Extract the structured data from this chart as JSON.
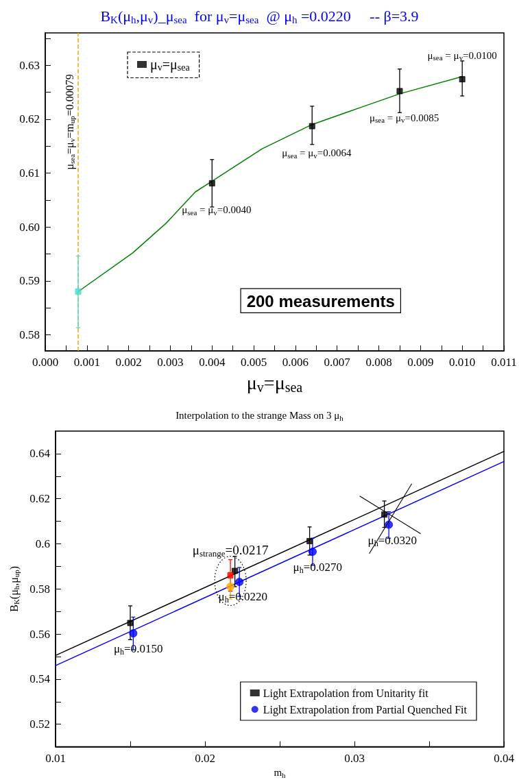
{
  "chart_data": [
    {
      "type": "scatter",
      "title": "B$_{K}$(μ$_{h}$,μ$_{v}$)_μ$_{sea}$  for μ$_{v}$=μ$_{sea}$  @ μ$_{h}$ =0.0220     -- β=3.9",
      "xlabel": "μ$_{v}$=μ$_{sea}$",
      "legend": "top left",
      "xlim": [
        0,
        0.011
      ],
      "xticks": [
        {
          "value": 0,
          "label": "0.000"
        },
        {
          "value": 0.0005,
          "label": null
        },
        0.001,
        {
          "value": 0.0015,
          "label": null
        },
        0.002,
        {
          "value": 0.0025,
          "label": null
        },
        0.003,
        {
          "value": 0.0035,
          "label": null
        },
        0.004,
        {
          "value": 0.0045,
          "label": null
        },
        0.005,
        {
          "value": 0.0055,
          "label": null
        },
        0.006,
        {
          "value": 0.0065,
          "label": null
        },
        0.007,
        {
          "value": 0.0075,
          "label": null
        },
        0.008,
        {
          "value": 0.0085,
          "label": null
        },
        0.009,
        {
          "value": 0.0095,
          "label": null
        },
        {
          "value": 0.01,
          "label": "0.010"
        },
        {
          "value": 0.0105,
          "label": null
        },
        0.011
      ],
      "ylim": [
        0.577,
        0.636
      ],
      "yticks": [
        0.58,
        {
          "value": 0.585,
          "label": null
        },
        0.59,
        {
          "value": 0.595,
          "label": null
        },
        {
          "value": 0.6,
          "label": "0.60"
        },
        {
          "value": 0.605,
          "label": null
        },
        0.61,
        {
          "value": 0.615,
          "label": null
        },
        0.62,
        {
          "value": 0.625,
          "label": null
        },
        0.63,
        {
          "value": 0.635,
          "label": null
        }
      ],
      "series": [
        {
          "name": "μ$_{v}$=μ$_{sea}$",
          "type": "scatter",
          "marker": "square",
          "color": "#000000",
          "x": [
            0.004,
            0.0064,
            0.0085,
            0.01
          ],
          "values": [
            0.6081,
            0.6187,
            0.6252,
            0.6274
          ],
          "errors": [
            [
              0.6037,
              0.6125
            ],
            [
              0.6153,
              0.6224
            ],
            [
              0.6212,
              0.6293
            ],
            [
              0.6243,
              0.6308
            ]
          ]
        },
        {
          "type": "scatter",
          "marker": "square",
          "color": "#40e0d0",
          "x": [
            0.00079
          ],
          "values": [
            0.588
          ],
          "errors": [
            [
              0.5813,
              0.5946
            ]
          ]
        },
        {
          "type": "line",
          "marker": "none",
          "color": "#008000",
          "x": [
            0.00079,
            0.0021,
            0.0029,
            0.0036,
            0.004,
            0.0052,
            0.0064,
            0.0075,
            0.0085,
            0.01
          ],
          "values": [
            0.588,
            0.5952,
            0.6007,
            0.6065,
            0.6085,
            0.6145,
            0.619,
            0.622,
            0.6247,
            0.6279
          ]
        }
      ],
      "ref_lines": [
        {
          "axis": "x",
          "value": 0.00079,
          "label": "μ$_{sea}$=μ$_{v}$=m$_{up}$=0.00079",
          "color": "#ffa500",
          "line_style": "dashed"
        }
      ],
      "annotations": [
        {
          "text": "μ$_{sea}$ = μ$_{v}$=0.0040",
          "x": 0.004,
          "y": 0.6081
        },
        {
          "text": "μ$_{sea}$ = μ$_{v}$=0.0064",
          "x": 0.0064,
          "y": 0.6187
        },
        {
          "text": "μ$_{sea}$ = μ$_{v}$=0.0085",
          "x": 0.0085,
          "y": 0.6252
        },
        {
          "text": "μ$_{sea}$ = μ$_{v}$=0.0100",
          "x": 0.01,
          "y": 0.6274
        },
        "200 measurements"
      ]
    },
    {
      "type": "scatter",
      "title": "Interpolation to the strange Mass on 3 μ$_{h}$",
      "xlabel": "m$_{h}$",
      "ylabel": "B$_{K}$(μ$_{h}$,μ$_{up}$)",
      "legend": "bottom right",
      "xlim": [
        0.01,
        0.04
      ],
      "xticks": [
        0.01,
        {
          "value": 0.015,
          "label": null
        },
        0.02,
        {
          "value": 0.025,
          "label": null
        },
        0.03,
        {
          "value": 0.035,
          "label": null
        },
        0.04
      ],
      "ylim": [
        0.51,
        0.65
      ],
      "yticks": [
        0.52,
        {
          "value": 0.53,
          "label": null
        },
        0.54,
        {
          "value": 0.55,
          "label": null
        },
        0.56,
        {
          "value": 0.57,
          "label": null
        },
        0.58,
        {
          "value": 0.59,
          "label": null
        },
        0.6,
        {
          "value": 0.61,
          "label": null
        },
        0.62,
        {
          "value": 0.63,
          "label": null
        },
        0.64
      ],
      "series": [
        {
          "name": "Light Extrapolation from Unitarity fit",
          "type": "scatter",
          "marker": "square",
          "color": "#000000",
          "x": [
            0.015,
            0.022,
            0.027,
            0.032
          ],
          "values": [
            0.5649,
            0.588,
            0.6012,
            0.613
          ],
          "errors": [
            [
              0.5575,
              0.5725
            ],
            [
              0.581,
              0.5945
            ],
            [
              0.595,
              0.6075
            ],
            [
              0.6073,
              0.619
            ]
          ]
        },
        {
          "name": "Light Extrapolation from Partial Quenched Fit",
          "type": "scatter",
          "marker": "circle",
          "color": "#0000ff",
          "x": [
            0.0152,
            0.0223,
            0.0272,
            0.0323
          ],
          "values": [
            0.5603,
            0.5831,
            0.5965,
            0.6085
          ],
          "errors": [
            [
              0.553,
              0.5675
            ],
            [
              0.5767,
              0.5895
            ],
            [
              0.5905,
              0.6025
            ],
            [
              0.6025,
              0.6142
            ]
          ]
        },
        {
          "type": "scatter",
          "marker": "square",
          "color": "#ff0000",
          "x": [
            0.0217
          ],
          "values": [
            0.586
          ],
          "errors": [
            [
              0.579,
              0.593
            ]
          ]
        },
        {
          "type": "scatter",
          "marker": "circle",
          "color": "#ffa500",
          "x": [
            0.0217
          ],
          "values": [
            0.581
          ],
          "errors": [
            [
              0.5755,
              0.5875
            ]
          ]
        },
        {
          "type": "line",
          "marker": "none",
          "color": "#000000",
          "x": [
            0.01,
            0.04
          ],
          "values": [
            0.5505,
            0.641
          ]
        },
        {
          "type": "line",
          "marker": "none",
          "color": "#0000ff",
          "x": [
            0.01,
            0.04
          ],
          "values": [
            0.546,
            0.6365
          ]
        }
      ],
      "annotations": [
        {
          "text": "μ$_{strange}$=0.0217",
          "x": 0.0217,
          "y": 0.586
        },
        {
          "text": "μ$_{h}$=0.0150",
          "x": 0.015,
          "y": 0.5649
        },
        {
          "text": "μ$_{h}$=0.0220",
          "x": 0.022,
          "y": 0.588
        },
        {
          "text": "μ$_{h}$=0.0270",
          "x": 0.027,
          "y": 0.6012
        },
        {
          "text": "μ$_{h}$=0.0320",
          "x": 0.032,
          "y": 0.613
        }
      ]
    }
  ]
}
